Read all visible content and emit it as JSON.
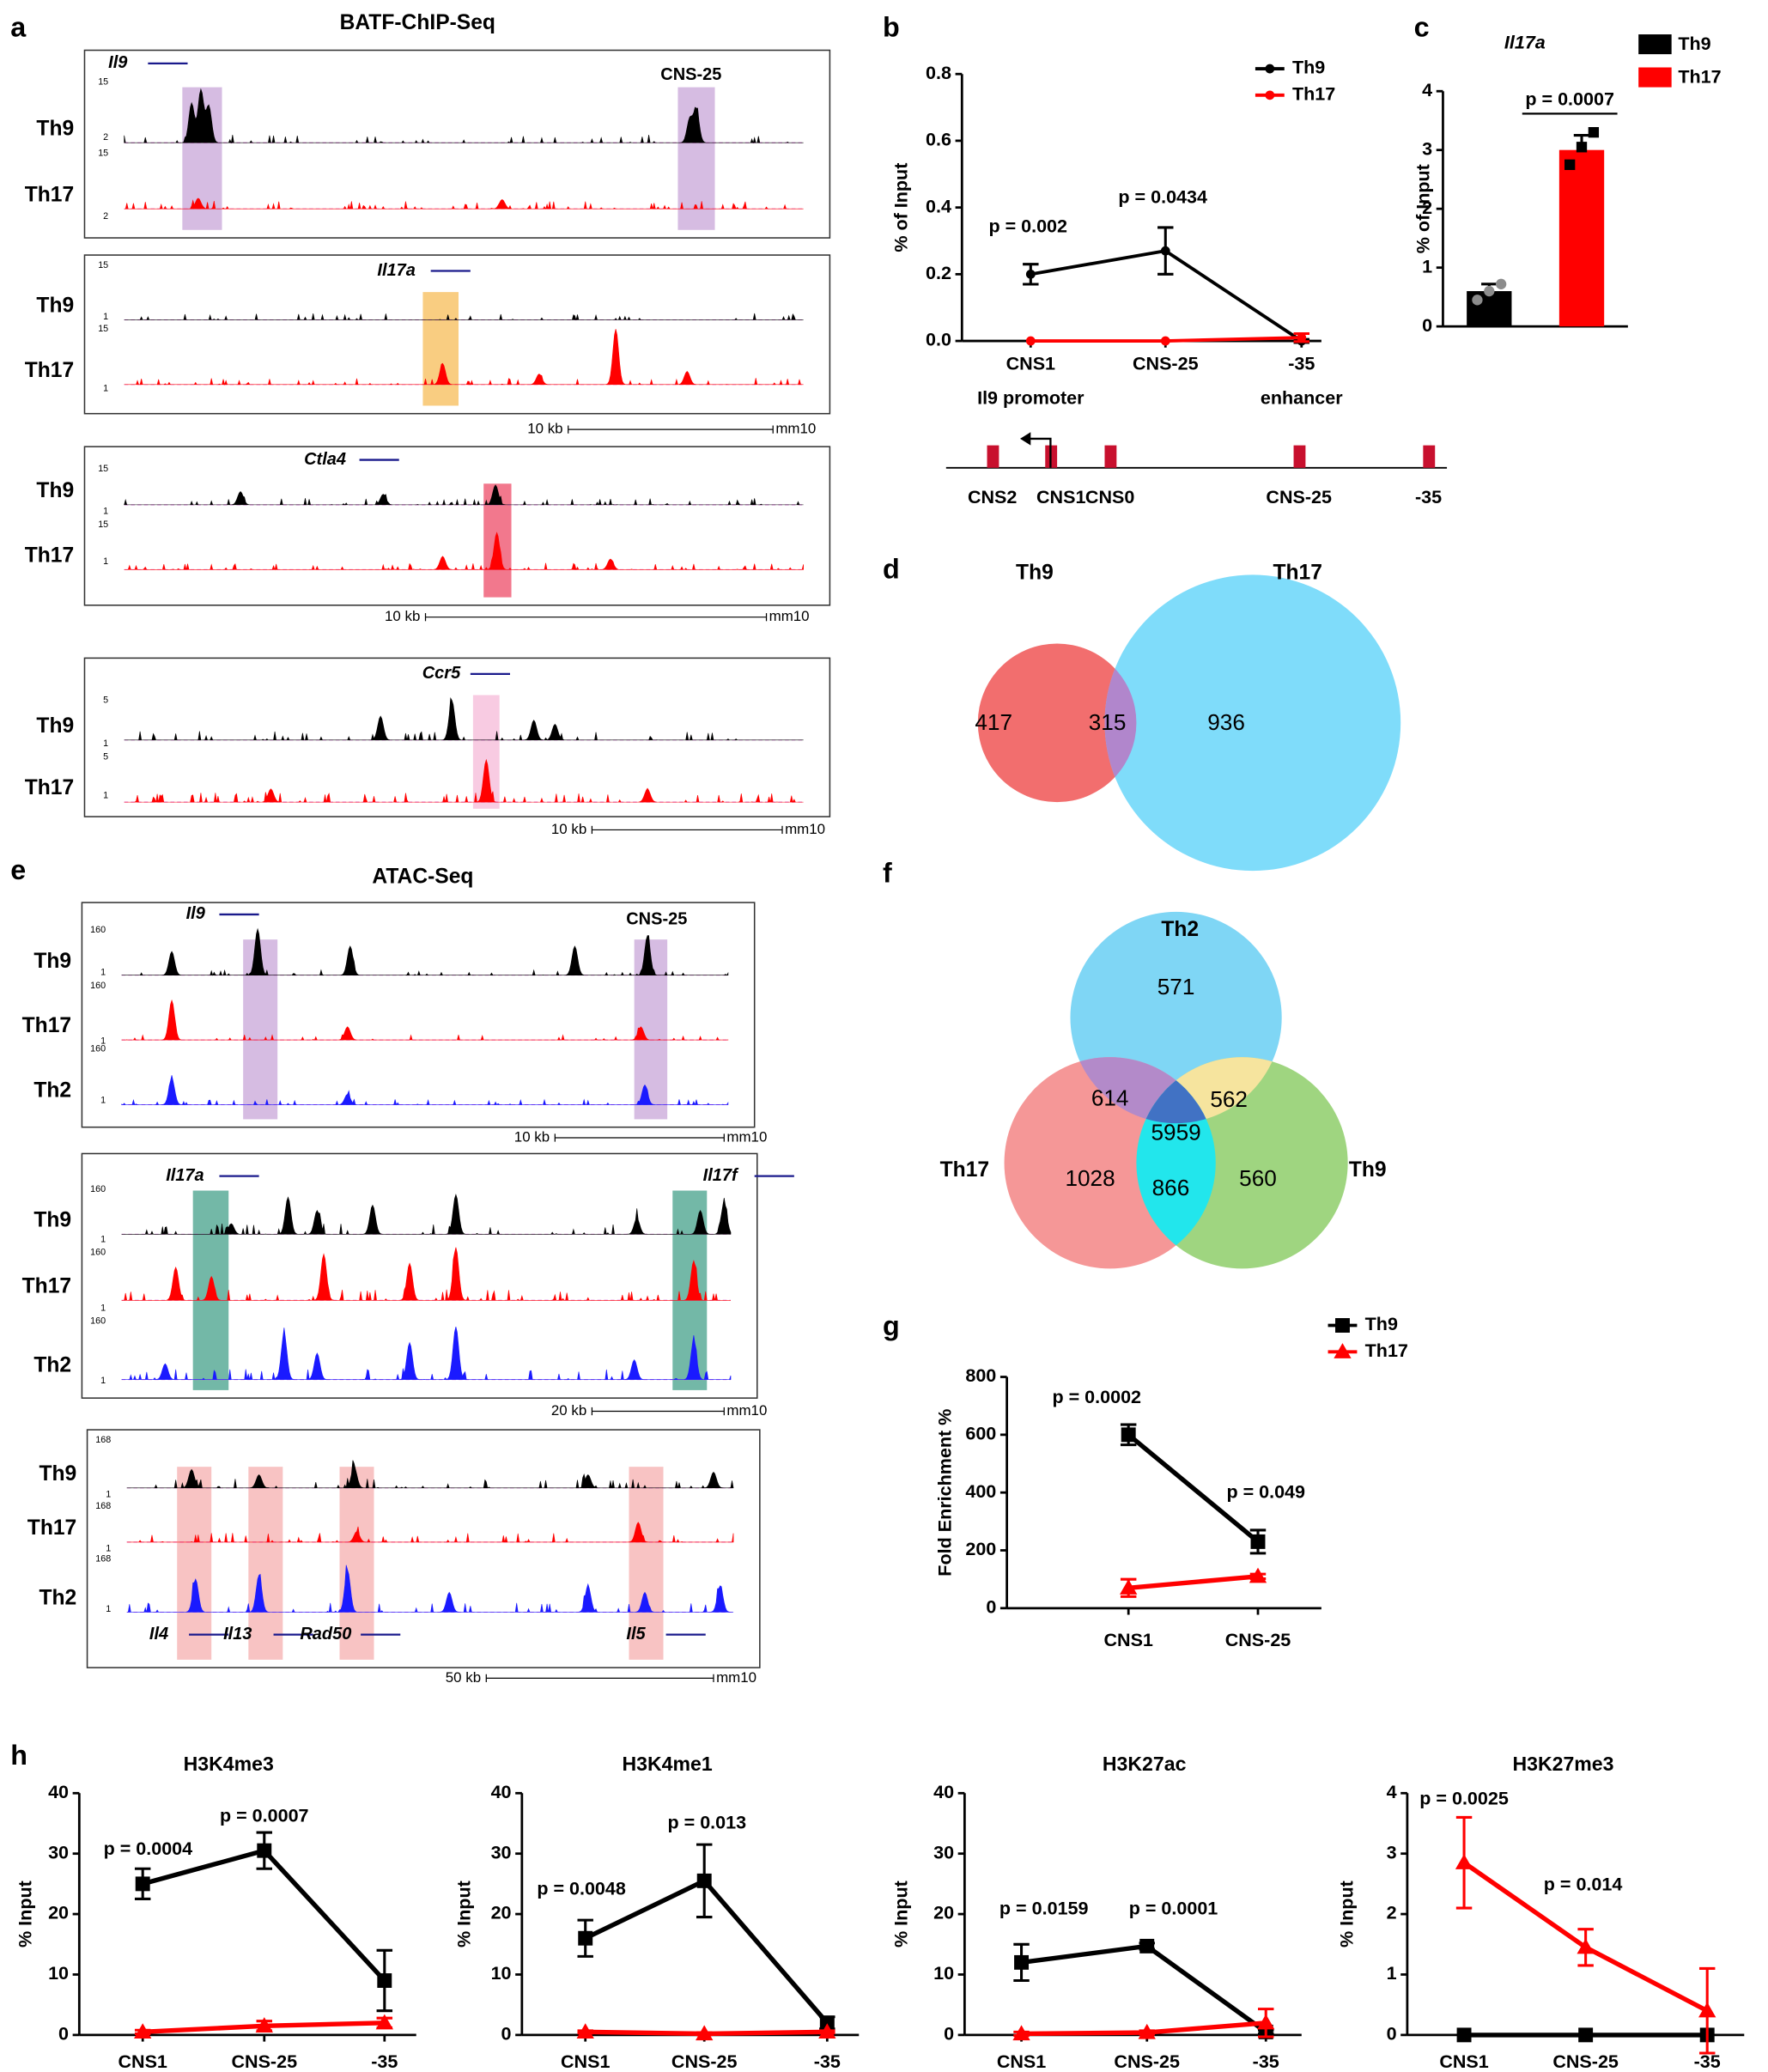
{
  "genome_tracks": [
    {
      "panel": "a",
      "title": "BATF-ChIP-Seq",
      "boxes": [
        {
          "genes": [
            {
              "name": "Il9",
              "color": "#000000"
            },
            {
              "name": "CNS-25",
              "color": "#000000"
            }
          ],
          "rows": [
            {
              "name": "Th9",
              "color": "#000000"
            },
            {
              "name": "Th17",
              "color": "#ff0000"
            }
          ],
          "scales": [
            15,
            2,
            15,
            2
          ]
        },
        {
          "genes": [
            {
              "name": "Il17a",
              "color": "#ff0000"
            }
          ],
          "rows": [
            {
              "name": "Th9",
              "color": "#000000"
            },
            {
              "name": "Th17",
              "color": "#ff0000"
            }
          ],
          "scales": [
            15,
            1,
            15,
            1
          ],
          "scalebar": [
            "10 kb",
            "mm10"
          ]
        },
        {
          "genes": [
            {
              "name": "Ctla4",
              "color": "#1a1aff"
            }
          ],
          "rows": [
            {
              "name": "Th9",
              "color": "#000000"
            },
            {
              "name": "Th17",
              "color": "#ff0000"
            }
          ],
          "scales": [
            15,
            1,
            15,
            1
          ],
          "scalebar": [
            "10 kb",
            "mm10"
          ]
        },
        {
          "genes": [
            {
              "name": "Ccr5",
              "color": "#000000"
            }
          ],
          "rows": [
            {
              "name": "Th9",
              "color": "#000000"
            },
            {
              "name": "Th17",
              "color": "#ff0000"
            }
          ],
          "scales": [
            5,
            1,
            5,
            1
          ],
          "scalebar": [
            "10 kb",
            "mm10"
          ]
        }
      ]
    },
    {
      "panel": "e",
      "title": "ATAC-Seq",
      "boxes": [
        {
          "genes": [
            {
              "name": "Il9",
              "color": "#000000"
            },
            {
              "name": "CNS-25",
              "color": "#000000"
            }
          ],
          "rows": [
            {
              "name": "Th9",
              "color": "#000000"
            },
            {
              "name": "Th17",
              "color": "#ff0000"
            },
            {
              "name": "Th2",
              "color": "#1a1aff"
            }
          ],
          "scales": [
            160,
            1,
            160,
            1,
            160,
            1
          ],
          "scalebar": [
            "10 kb",
            "mm10"
          ]
        },
        {
          "genes": [
            {
              "name": "Il17a",
              "color": "#ff0000"
            },
            {
              "name": "Il17f",
              "color": "#ff0000"
            }
          ],
          "rows": [
            {
              "name": "Th9",
              "color": "#000000"
            },
            {
              "name": "Th17",
              "color": "#ff0000"
            },
            {
              "name": "Th2",
              "color": "#1a1aff"
            }
          ],
          "scales": [
            160,
            1,
            160,
            1,
            160,
            1
          ],
          "scalebar": [
            "20 kb",
            "mm10"
          ]
        },
        {
          "genes": [
            {
              "name": "Il4",
              "color": "#1a1aff"
            },
            {
              "name": "Il13",
              "color": "#1a1aff"
            },
            {
              "name": "Rad50",
              "color": "#1a1aff"
            },
            {
              "name": "Il5",
              "color": "#1a1aff"
            }
          ],
          "rows": [
            {
              "name": "Th9",
              "color": "#000000"
            },
            {
              "name": "Th17",
              "color": "#ff0000"
            },
            {
              "name": "Th2",
              "color": "#1a1aff"
            }
          ],
          "scales": [
            168,
            1,
            168,
            1,
            168,
            1
          ],
          "scalebar": [
            "50 kb",
            "mm10"
          ]
        }
      ]
    }
  ],
  "chart_data": [
    {
      "panel": "b",
      "type": "line",
      "ylabel": "% of Input",
      "categories": [
        "CNS1",
        "CNS-25",
        "-35"
      ],
      "sublabels": [
        "Il9 promoter",
        "enhancer"
      ],
      "diagram": [
        "CNS2",
        "CNS1",
        "CNS0",
        "CNS-25",
        "-35"
      ],
      "series": [
        {
          "name": "Th9",
          "color": "#000000",
          "marker": "circle",
          "values": [
            0.2,
            0.27,
            0.0
          ],
          "errors": [
            0.03,
            0.07,
            0.005
          ]
        },
        {
          "name": "Th17",
          "color": "#ff0000",
          "marker": "circle",
          "values": [
            0.0,
            0.0,
            0.01
          ],
          "errors": [
            0,
            0,
            0.012
          ]
        }
      ],
      "ylim": [
        0,
        0.8
      ],
      "yticks": [
        {
          "value": 0,
          "label": "0.0"
        },
        0.2,
        0.4,
        0.6,
        0.8
      ],
      "annotations": [
        "p = 0.002",
        "p = 0.0434"
      ],
      "legend": "upper right"
    },
    {
      "panel": "c",
      "type": "bar",
      "title": "Il17a",
      "ylabel": "% of Input",
      "series": [
        {
          "name": "Th9",
          "color": "#000000",
          "value": 0.6,
          "error": 0.12,
          "points": [
            0.45,
            0.6,
            0.72
          ],
          "point_color": "#8c8c8c"
        },
        {
          "name": "Th17",
          "color": "#ff0000",
          "value": 3.0,
          "error": 0.25,
          "points": [
            2.75,
            3.05,
            3.3
          ],
          "point_color": "#000000"
        }
      ],
      "ylim": [
        0,
        4
      ],
      "yticks": [
        0,
        1,
        2,
        3,
        4
      ],
      "annotations": [
        "p = 0.0007"
      ],
      "legend": "upper right"
    },
    {
      "panel": "d",
      "type": "venn2",
      "sets": [
        {
          "name": "Th9",
          "color": "#f26e6e"
        },
        {
          "name": "Th17",
          "color": "#7fdcfa"
        }
      ],
      "values": [
        417,
        315,
        936
      ],
      "overlap_color": "#b186cc"
    },
    {
      "panel": "f",
      "type": "venn3",
      "sets": [
        {
          "name": "Th2",
          "color": "#7fd6f5"
        },
        {
          "name": "Th17",
          "color": "#f59797"
        },
        {
          "name": "Th9",
          "color": "#9fd580"
        }
      ],
      "values": [
        571,
        614,
        562,
        5959,
        1028,
        866,
        560
      ],
      "overlap_colors": [
        "#b38ac9",
        "#f6e49e",
        "#22e6ec",
        "#4172c4"
      ]
    },
    {
      "panel": "g",
      "type": "line",
      "ylabel": "Fold Enrichment %",
      "categories": [
        "CNS1",
        "CNS-25"
      ],
      "series": [
        {
          "name": "Th9",
          "color": "#000000",
          "marker": "square",
          "values": [
            600,
            230
          ],
          "errors": [
            35,
            40
          ]
        },
        {
          "name": "Th17",
          "color": "#ff0000",
          "marker": "triangle",
          "values": [
            70,
            110
          ],
          "errors": [
            30,
            8
          ]
        }
      ],
      "ylim": [
        0,
        800
      ],
      "yticks": [
        0,
        200,
        400,
        600,
        800
      ],
      "annotations": [
        "p = 0.0002",
        "p = 0.049"
      ],
      "legend": "upper right"
    },
    {
      "panel": "h",
      "type": "line",
      "title": "H3K4me3",
      "ylabel": "% Input",
      "categories": [
        "CNS1",
        "CNS-25",
        "-35"
      ],
      "series": [
        {
          "color": "#000000",
          "marker": "square",
          "values": [
            25,
            30.5,
            9
          ],
          "errors": [
            2.5,
            3,
            5
          ]
        },
        {
          "color": "#ff0000",
          "marker": "triangle",
          "values": [
            0.5,
            1.5,
            2
          ],
          "errors": [
            0.3,
            0.8,
            0.8
          ]
        }
      ],
      "ylim": [
        0,
        40
      ],
      "yticks": [
        0,
        10,
        20,
        30,
        40
      ],
      "annotations": [
        "p = 0.0004",
        "p = 0.0007"
      ]
    },
    {
      "type": "line",
      "title": "H3K4me1",
      "ylabel": "% Input",
      "categories": [
        "CNS1",
        "CNS-25",
        "-35"
      ],
      "series": [
        {
          "color": "#000000",
          "marker": "square",
          "values": [
            16,
            25.5,
            2
          ],
          "errors": [
            3,
            6,
            1
          ]
        },
        {
          "color": "#ff0000",
          "marker": "triangle",
          "values": [
            0.5,
            0.2,
            0.5
          ],
          "errors": [
            0.2,
            0.2,
            0.2
          ]
        }
      ],
      "ylim": [
        0,
        40
      ],
      "yticks": [
        0,
        10,
        20,
        30,
        40
      ],
      "annotations": [
        "p = 0.0048",
        "p = 0.013"
      ]
    },
    {
      "type": "line",
      "title": "H3K27ac",
      "ylabel": "% Input",
      "categories": [
        "CNS1",
        "CNS-25",
        "-35"
      ],
      "series": [
        {
          "color": "#000000",
          "marker": "square",
          "values": [
            12,
            14.7,
            0.5
          ],
          "errors": [
            3,
            0.5,
            0.3
          ]
        },
        {
          "color": "#ff0000",
          "marker": "triangle",
          "values": [
            0.2,
            0.4,
            2
          ],
          "errors": [
            0.3,
            0.3,
            2.3
          ]
        }
      ],
      "ylim": [
        0,
        40
      ],
      "yticks": [
        0,
        10,
        20,
        30,
        40
      ],
      "annotations": [
        "p = 0.0159",
        "p = 0.0001"
      ]
    },
    {
      "type": "line",
      "title": "H3K27me3",
      "ylabel": "% Input",
      "categories": [
        "CNS1",
        "CNS-25",
        "-35"
      ],
      "series": [
        {
          "color": "#000000",
          "marker": "square",
          "values": [
            0,
            0,
            0
          ],
          "errors": [
            0,
            0,
            0
          ]
        },
        {
          "color": "#ff0000",
          "marker": "triangle",
          "values": [
            2.85,
            1.45,
            0.4
          ],
          "errors": [
            0.75,
            0.3,
            0.7
          ]
        }
      ],
      "ylim": [
        0,
        4
      ],
      "yticks": [
        0,
        1,
        2,
        3,
        4
      ],
      "annotations": [
        "p = 0.0025",
        "p = 0.014"
      ]
    }
  ]
}
